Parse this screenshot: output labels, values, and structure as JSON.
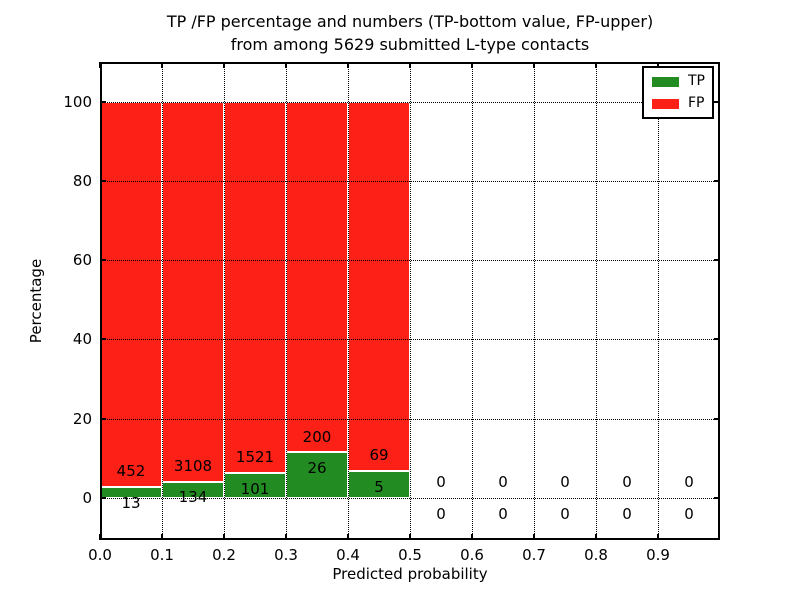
{
  "figure": {
    "title_line1": "TP /FP percentage and numbers (TP-bottom value, FP-upper)",
    "title_line2": "from among 5629 submitted L-type contacts",
    "xlabel": "Predicted probability",
    "ylabel": "Percentage"
  },
  "chart_data": {
    "type": "bar",
    "stacked": true,
    "title": "TP /FP percentage and numbers (TP-bottom value, FP-upper) from among 5629 submitted L-type contacts",
    "xlabel": "Predicted probability",
    "ylabel": "Percentage",
    "xlim": [
      0.0,
      1.0
    ],
    "ylim": [
      -10.6,
      110.0
    ],
    "bin_edges": [
      0.0,
      0.1,
      0.2,
      0.3,
      0.4,
      0.5,
      0.6,
      0.7,
      0.8,
      0.9,
      1.0
    ],
    "categories": [
      "0.0-0.1",
      "0.1-0.2",
      "0.2-0.3",
      "0.3-0.4",
      "0.4-0.5",
      "0.5-0.6",
      "0.6-0.7",
      "0.7-0.8",
      "0.8-0.9",
      "0.9-1.0"
    ],
    "series": [
      {
        "name": "TP",
        "color": "#228b22",
        "counts": [
          13,
          134,
          101,
          26,
          5,
          0,
          0,
          0,
          0,
          0
        ]
      },
      {
        "name": "FP",
        "color": "#fc2016",
        "counts": [
          452,
          3108,
          1521,
          200,
          69,
          0,
          0,
          0,
          0,
          0
        ]
      }
    ],
    "bar_mode": "percentage-stacked-to-100",
    "bar_edge_color": "#ffffff",
    "label_offset_pct": 4,
    "xticks": [
      0.0,
      0.1,
      0.2,
      0.3,
      0.4,
      0.5,
      0.6,
      0.7,
      0.8,
      0.9
    ],
    "xtick_labels": [
      "0.0",
      "0.1",
      "0.2",
      "0.3",
      "0.4",
      "0.5",
      "0.6",
      "0.7",
      "0.8",
      "0.9"
    ],
    "yticks": [
      0,
      20,
      40,
      60,
      80,
      100
    ],
    "ytick_labels": [
      "0",
      "20",
      "40",
      "60",
      "80",
      "100"
    ],
    "grid": {
      "show": true,
      "style": "dotted",
      "color": "#000000"
    },
    "legend": {
      "position": "upper right",
      "items": [
        {
          "label": "TP",
          "color": "#228b22"
        },
        {
          "label": "FP",
          "color": "#fc2016"
        }
      ]
    }
  }
}
